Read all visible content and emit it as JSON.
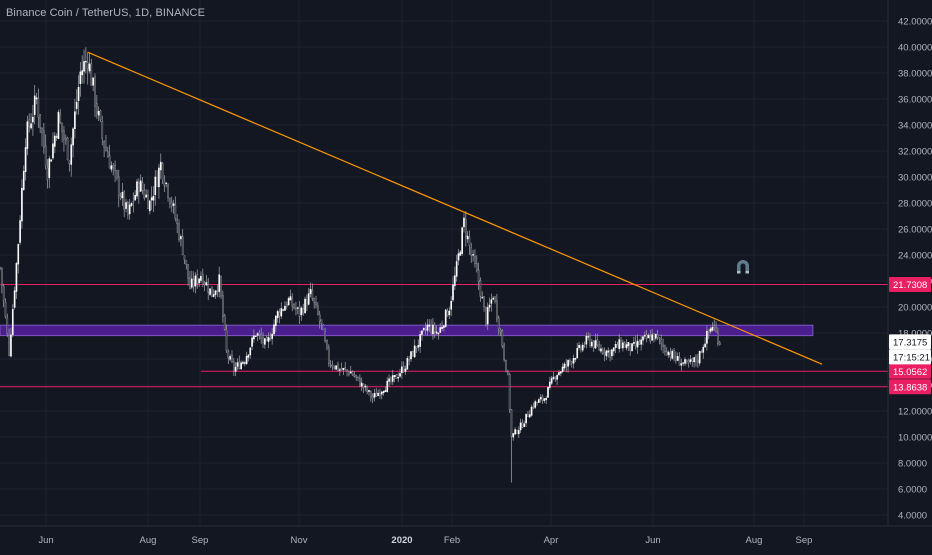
{
  "header": {
    "symbol_title": "Binance Coin / TetherUS, 1D, BINANCE"
  },
  "colors": {
    "background": "#131722",
    "grid": "#1e222d",
    "axis_text": "#b2b5be",
    "candle_up": "#ffffff",
    "candle_down": "#1e1e1e",
    "wick": "#9598a1",
    "trendline": "#ff9800",
    "hline": "#e91e63",
    "zone_fill": "#4a1e8c",
    "zone_border": "#7e57c2",
    "price_label_bg": "#e91e63",
    "current_price_bg": "#ffffff",
    "magnet_icon": "#607d8b"
  },
  "chart_data": {
    "type": "candlestick",
    "ylim": [
      4,
      42
    ],
    "y_ticks": [
      "4.0000",
      "6.0000",
      "8.0000",
      "10.0000",
      "12.0000",
      "14.0000",
      "16.0000",
      "18.0000",
      "20.0000",
      "22.0000",
      "24.0000",
      "26.0000",
      "28.0000",
      "30.0000",
      "32.0000",
      "34.0000",
      "36.0000",
      "38.0000",
      "40.0000",
      "42.0000"
    ],
    "x_ticks": [
      "Jun",
      "Aug",
      "Sep",
      "Nov",
      "2020",
      "Feb",
      "Apr",
      "Jun",
      "Aug",
      "Sep"
    ],
    "price_path": [
      {
        "t": 0,
        "p": 23.0
      },
      {
        "t": 5,
        "p": 16.5
      },
      {
        "t": 10,
        "p": 25.0
      },
      {
        "t": 14,
        "p": 33.0
      },
      {
        "t": 20,
        "p": 36.0
      },
      {
        "t": 26,
        "p": 30.5
      },
      {
        "t": 32,
        "p": 34.5
      },
      {
        "t": 38,
        "p": 31.5
      },
      {
        "t": 44,
        "p": 38.0
      },
      {
        "t": 48,
        "p": 39.2
      },
      {
        "t": 52,
        "p": 36.0
      },
      {
        "t": 56,
        "p": 33.0
      },
      {
        "t": 64,
        "p": 29.5
      },
      {
        "t": 70,
        "p": 27.0
      },
      {
        "t": 76,
        "p": 29.5
      },
      {
        "t": 82,
        "p": 28.0
      },
      {
        "t": 88,
        "p": 31.0
      },
      {
        "t": 94,
        "p": 28.0
      },
      {
        "t": 100,
        "p": 24.5
      },
      {
        "t": 104,
        "p": 21.5
      },
      {
        "t": 110,
        "p": 22.5
      },
      {
        "t": 116,
        "p": 21.0
      },
      {
        "t": 120,
        "p": 22.0
      },
      {
        "t": 124,
        "p": 16.5
      },
      {
        "t": 128,
        "p": 15.2
      },
      {
        "t": 134,
        "p": 16.0
      },
      {
        "t": 140,
        "p": 18.0
      },
      {
        "t": 146,
        "p": 17.0
      },
      {
        "t": 152,
        "p": 19.5
      },
      {
        "t": 158,
        "p": 20.5
      },
      {
        "t": 164,
        "p": 19.5
      },
      {
        "t": 170,
        "p": 21.0
      },
      {
        "t": 176,
        "p": 18.5
      },
      {
        "t": 180,
        "p": 15.8
      },
      {
        "t": 186,
        "p": 15.2
      },
      {
        "t": 192,
        "p": 15.0
      },
      {
        "t": 198,
        "p": 14.0
      },
      {
        "t": 204,
        "p": 13.0
      },
      {
        "t": 210,
        "p": 13.8
      },
      {
        "t": 216,
        "p": 14.5
      },
      {
        "t": 222,
        "p": 15.5
      },
      {
        "t": 228,
        "p": 17.0
      },
      {
        "t": 234,
        "p": 18.5
      },
      {
        "t": 240,
        "p": 18.0
      },
      {
        "t": 246,
        "p": 20.0
      },
      {
        "t": 250,
        "p": 23.0
      },
      {
        "t": 254,
        "p": 26.5
      },
      {
        "t": 258,
        "p": 24.0
      },
      {
        "t": 262,
        "p": 22.0
      },
      {
        "t": 266,
        "p": 19.0
      },
      {
        "t": 270,
        "p": 21.0
      },
      {
        "t": 274,
        "p": 18.0
      },
      {
        "t": 278,
        "p": 14.5
      },
      {
        "t": 280,
        "p": 10.0
      },
      {
        "t": 286,
        "p": 11.0
      },
      {
        "t": 292,
        "p": 12.5
      },
      {
        "t": 298,
        "p": 13.0
      },
      {
        "t": 304,
        "p": 14.8
      },
      {
        "t": 310,
        "p": 15.5
      },
      {
        "t": 316,
        "p": 16.5
      },
      {
        "t": 322,
        "p": 17.5
      },
      {
        "t": 328,
        "p": 16.8
      },
      {
        "t": 334,
        "p": 16.5
      },
      {
        "t": 340,
        "p": 17.2
      },
      {
        "t": 346,
        "p": 16.8
      },
      {
        "t": 352,
        "p": 17.4
      },
      {
        "t": 358,
        "p": 17.8
      },
      {
        "t": 364,
        "p": 16.8
      },
      {
        "t": 370,
        "p": 16.0
      },
      {
        "t": 376,
        "p": 15.5
      },
      {
        "t": 382,
        "p": 16.0
      },
      {
        "t": 386,
        "p": 17.5
      },
      {
        "t": 390,
        "p": 18.6
      },
      {
        "t": 394,
        "p": 17.3
      }
    ],
    "trendline": {
      "from": {
        "t": 48,
        "p": 39.6
      },
      "to": {
        "t": 450,
        "p": 15.6
      },
      "color": "#ff9800"
    },
    "horizontal_lines": [
      {
        "value": 21.7308,
        "label": "21.7308",
        "t_from": 0
      },
      {
        "value": 15.0562,
        "label": "15.0562",
        "t_from": 110
      },
      {
        "value": 13.8638,
        "label": "13.8638",
        "t_from": 0
      }
    ],
    "zone": {
      "low": 17.8,
      "high": 18.6,
      "t_from": 0,
      "t_to": 445
    },
    "current_price": {
      "value": 17.3175,
      "label": "17.3175",
      "countdown": "17:15:21"
    }
  }
}
